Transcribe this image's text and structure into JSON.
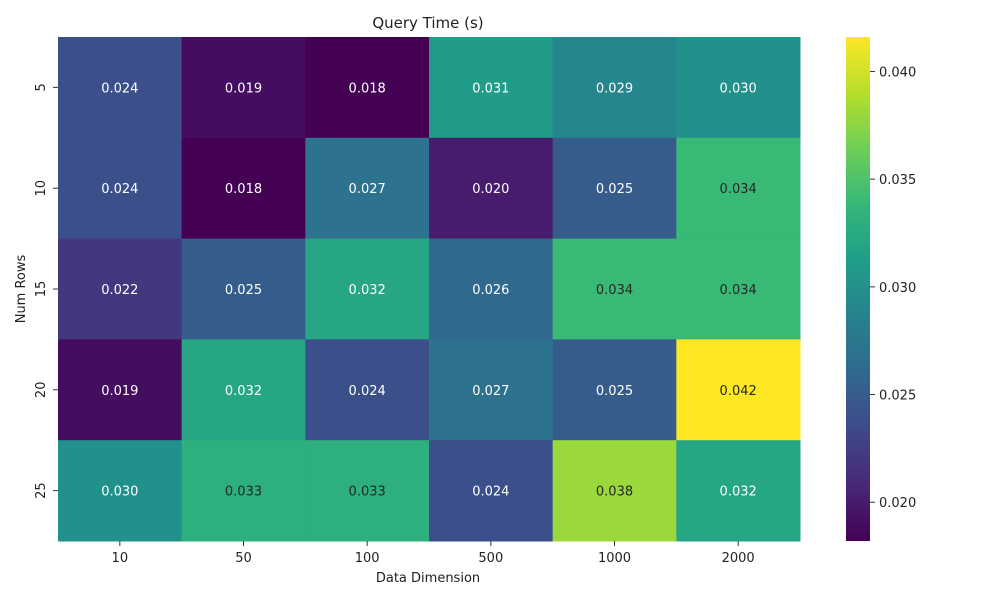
{
  "chart_data": {
    "type": "heatmap",
    "title": "Query Time (s)",
    "xlabel": "Data Dimension",
    "ylabel": "Num Rows",
    "x_categories": [
      "10",
      "50",
      "100",
      "500",
      "1000",
      "2000"
    ],
    "y_categories": [
      "5",
      "10",
      "15",
      "20",
      "25"
    ],
    "values": [
      [
        0.024,
        0.019,
        0.018,
        0.031,
        0.029,
        0.03
      ],
      [
        0.024,
        0.018,
        0.027,
        0.02,
        0.025,
        0.034
      ],
      [
        0.022,
        0.025,
        0.032,
        0.026,
        0.034,
        0.034
      ],
      [
        0.019,
        0.032,
        0.024,
        0.027,
        0.025,
        0.042
      ],
      [
        0.03,
        0.033,
        0.033,
        0.024,
        0.038,
        0.032
      ]
    ],
    "colormap": "viridis",
    "colorbar_range": [
      0.0182,
      0.0416
    ],
    "colorbar_ticks": [
      "0.020",
      "0.025",
      "0.030",
      "0.035",
      "0.040"
    ],
    "grid": false,
    "legend": "colorbar-right"
  }
}
